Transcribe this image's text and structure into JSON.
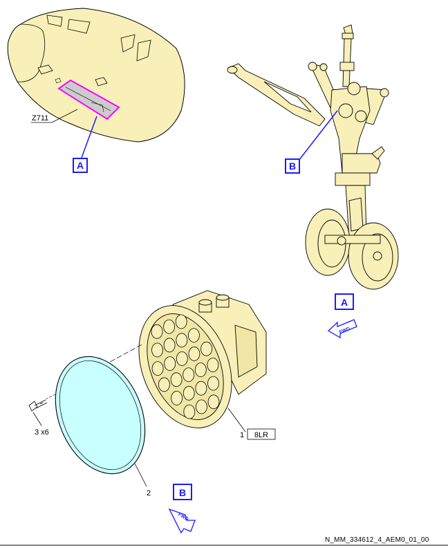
{
  "labels": {
    "zone": "Z711",
    "callout_a": "A",
    "callout_b": "B",
    "view_a": "A",
    "view_b": "B",
    "fwd_a": "FWD",
    "fwd_b": "FWD",
    "item1": "1",
    "item1_id": "8LR",
    "item2": "2",
    "item3": "3 x6"
  },
  "reference": "N_MM_334612_4_AEM0_01_00",
  "colors": {
    "part_fill": "#f8f0b8",
    "lens_fill": "#c8ffff",
    "highlight": "#ff00ff",
    "callout": "#1a1aff"
  }
}
